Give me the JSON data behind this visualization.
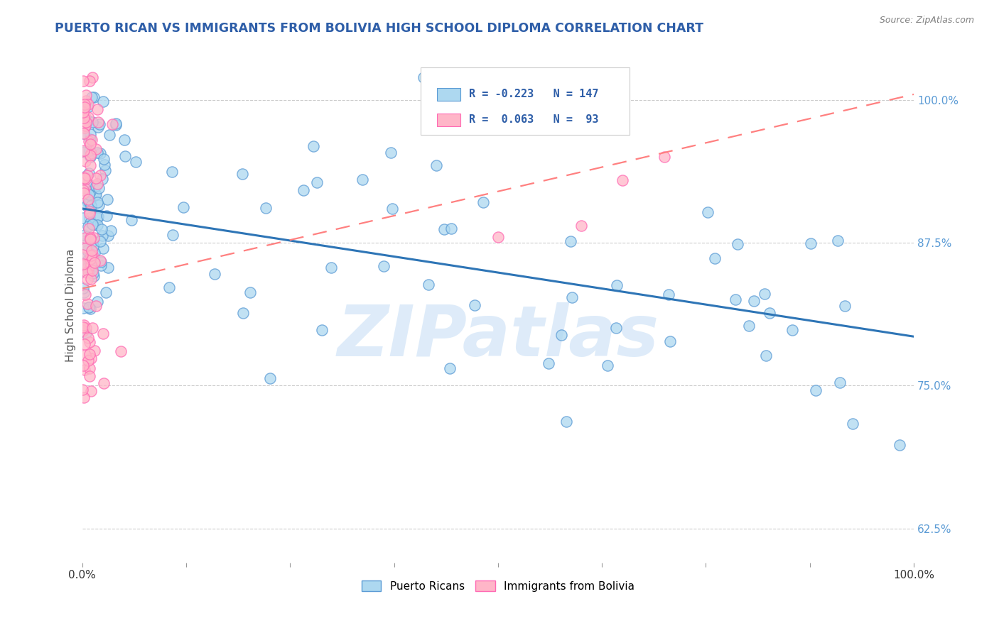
{
  "title": "PUERTO RICAN VS IMMIGRANTS FROM BOLIVIA HIGH SCHOOL DIPLOMA CORRELATION CHART",
  "source": "Source: ZipAtlas.com",
  "ylabel": "High School Diploma",
  "legend_labels": [
    "Puerto Ricans",
    "Immigrants from Bolivia"
  ],
  "blue_color": "#ADD8F0",
  "pink_color": "#FFB6C8",
  "blue_edge": "#5B9BD5",
  "pink_edge": "#FF69B4",
  "trend_blue": "#2E75B6",
  "trend_pink": "#FF8080",
  "background_color": "#ffffff",
  "title_color": "#2E5EA8",
  "source_color": "#808080",
  "xmin": 0.0,
  "xmax": 1.0,
  "ymin": 0.595,
  "ymax": 1.045,
  "yticks": [
    0.625,
    0.75,
    0.875,
    1.0
  ],
  "ytick_labels": [
    "62.5%",
    "75.0%",
    "87.5%",
    "100.0%"
  ],
  "xticks": [
    0.0,
    0.125,
    0.25,
    0.375,
    0.5,
    0.625,
    0.75,
    0.875,
    1.0
  ],
  "blue_trend_y0": 0.905,
  "blue_trend_y1": 0.793,
  "pink_trend_y0": 0.835,
  "pink_trend_y1": 1.005,
  "watermark_text": "ZIPatlas",
  "watermark_color": "#C8DFF5",
  "watermark_alpha": 0.6,
  "scatter_size": 120,
  "scatter_alpha": 0.75,
  "scatter_linewidth": 1.0
}
